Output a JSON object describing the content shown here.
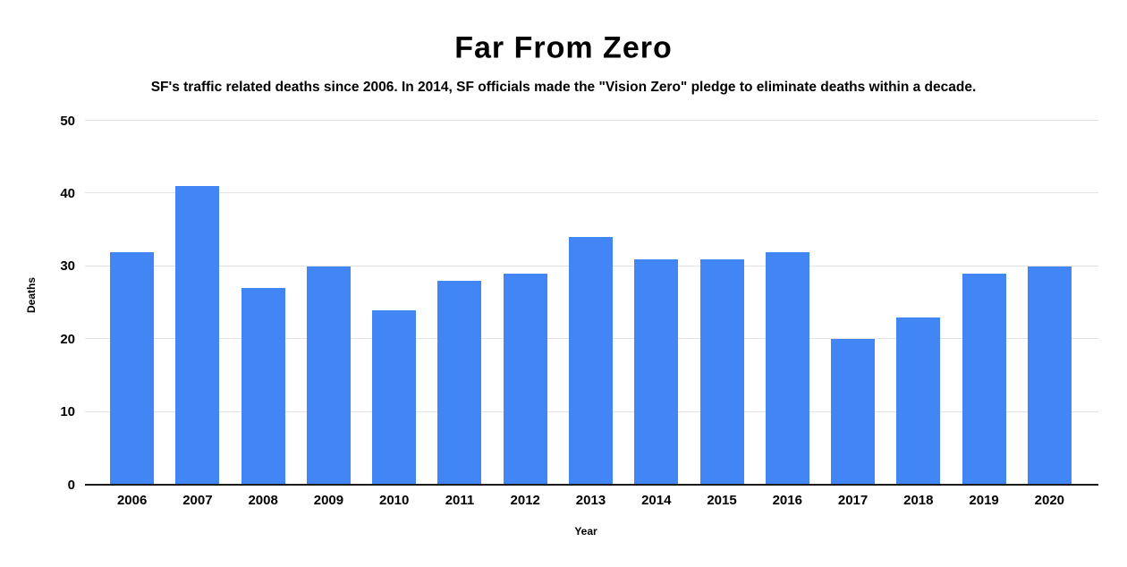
{
  "chart_data": {
    "type": "bar",
    "title": "Far From Zero",
    "subtitle": "SF's traffic related deaths since 2006. In 2014, SF officials made the \"Vision Zero\" pledge to eliminate deaths within a decade.",
    "xlabel": "Year",
    "ylabel": "Deaths",
    "categories": [
      "2006",
      "2007",
      "2008",
      "2009",
      "2010",
      "2011",
      "2012",
      "2013",
      "2014",
      "2015",
      "2016",
      "2017",
      "2018",
      "2019",
      "2020"
    ],
    "values": [
      32,
      41,
      27,
      30,
      24,
      28,
      29,
      34,
      31,
      31,
      32,
      20,
      23,
      29,
      30
    ],
    "ylim": [
      0,
      50
    ],
    "yticks": [
      0,
      10,
      20,
      30,
      40,
      50
    ],
    "grid": true,
    "legend": "none",
    "colors": {
      "bar": "#4285F4",
      "gridline": "#e3e3e3",
      "axis": "#1a1a1a",
      "text": "#000000",
      "background": "#ffffff"
    }
  }
}
